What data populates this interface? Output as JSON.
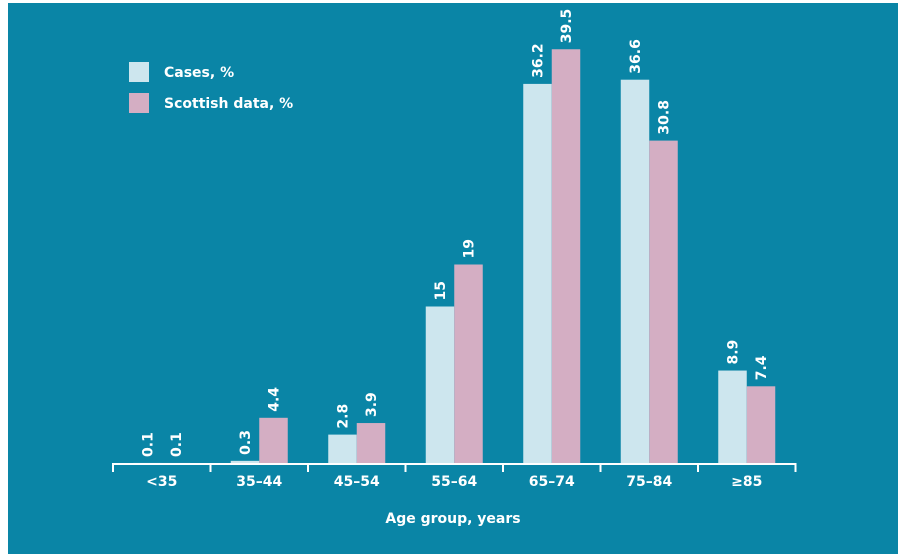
{
  "chart_data": {
    "type": "bar",
    "title": "",
    "xlabel": "Age group, years",
    "ylabel": "",
    "categories": [
      "<35",
      "35–44",
      "45–54",
      "55–64",
      "65–74",
      "75–84",
      "≥85"
    ],
    "series": [
      {
        "name": "Cases, %",
        "color": "#cde6ee",
        "values": [
          0.1,
          0.3,
          2.8,
          15,
          36.2,
          36.6,
          8.9
        ]
      },
      {
        "name": "Scottish data, %",
        "color": "#d4aec3",
        "values": [
          0.1,
          4.4,
          3.9,
          19,
          39.5,
          30.8,
          7.4
        ]
      }
    ],
    "value_labels": [
      [
        "0.1",
        "0.3",
        "2.8",
        "15",
        "36.2",
        "36.6",
        "8.9"
      ],
      [
        "0.1",
        "4.4",
        "3.9",
        "19",
        "39.5",
        "30.8",
        "7.4"
      ]
    ],
    "ylim": [
      0,
      42
    ],
    "grid": false,
    "legend": "top-left",
    "colors": {
      "background": "#0a85a6",
      "axis": "#ffffff",
      "text": "#ffffff"
    }
  }
}
